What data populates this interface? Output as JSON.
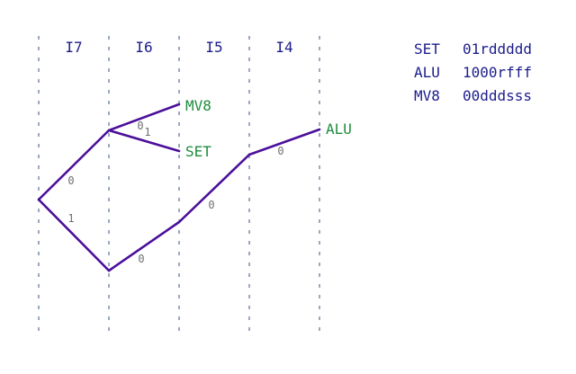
{
  "columns": [
    "I7",
    "I6",
    "I5",
    "I4"
  ],
  "tree": {
    "leaves": {
      "mv8": "MV8",
      "set": "SET",
      "alu": "ALU"
    },
    "edge_labels": {
      "root_to_upper": "0",
      "root_to_lower": "1",
      "upper_to_mv8": "0",
      "upper_to_set": "1",
      "lower_to_i5": "0",
      "i5_to_i4": "0",
      "i4_to_alu": "0"
    }
  },
  "encodings": [
    {
      "name": "SET",
      "pattern": "01rddddd"
    },
    {
      "name": "ALU",
      "pattern": "1000rfff"
    },
    {
      "name": "MV8",
      "pattern": "00dddsss"
    }
  ],
  "colors": {
    "edge": "#4b0f9a",
    "leaf": "#1e8c3c",
    "column_label": "#1c1c8c",
    "edge_label": "#707070"
  }
}
